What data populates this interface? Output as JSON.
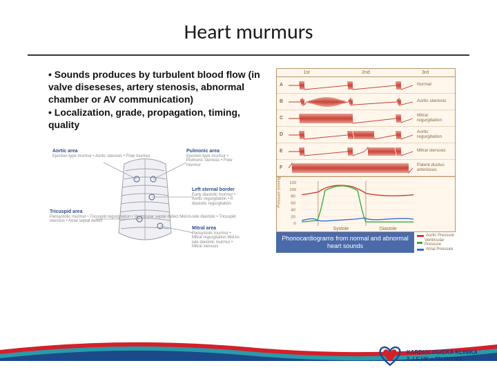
{
  "title": "Heart murmurs",
  "bullets": {
    "b1": "• Sounds produces by turbulent blood flow (in valve diseseses, artery stenosis, abnormal chamber or AV communication)",
    "b2": "• Localization, grade, propagation, timing, quality"
  },
  "auscultation": {
    "aortic": {
      "title": "Aortic area",
      "sub": "Ejection-type murmur\n• Aortic stenosis\n• Flow murmur"
    },
    "pulmonic": {
      "title": "Pulmonic area",
      "sub": "Ejection-type murmur\n• Pulmonic stenosis\n• Flow murmur"
    },
    "leftsternal": {
      "title": "Left sternal border",
      "sub": "Early diastolic murmur\n• Aortic regurgitation\n• P. diastolic regurgitation"
    },
    "tricuspid": {
      "title": "Tricuspid area",
      "sub": "Pansystolic murmur\n• Tricuspid regurgitation\n• Ventricular septal defect\n\nMid-to-late diastolic\n• Tricuspid stenosis\n• Atrial septal defect"
    },
    "mitral": {
      "title": "Mitral area",
      "sub": "Pansystolic murmur\n• Mitral regurgitation\n\nMid-to-late diastolic murmur\n• Mitral stenosis"
    },
    "colors": {
      "label": "#2a4a8a",
      "sublabel": "#888888",
      "rib": "#c8c8d0",
      "outline": "#9aa0a8",
      "point": "#6a7a9a"
    }
  },
  "phono": {
    "header": [
      "1st",
      "2nd",
      "3rd"
    ],
    "rows": [
      {
        "letter": "A",
        "label": "Normal",
        "pattern": "normal"
      },
      {
        "letter": "B",
        "label": "Aortic stenosis",
        "pattern": "systolic-crescendo"
      },
      {
        "letter": "C",
        "label": "Mitral regurgitation",
        "pattern": "pansystolic"
      },
      {
        "letter": "D",
        "label": "Aortic regurgitation",
        "pattern": "early-diastolic"
      },
      {
        "letter": "E",
        "label": "Mitral stenosis",
        "pattern": "mid-diastolic"
      },
      {
        "letter": "F",
        "label": "Patent ductus arteriosus",
        "pattern": "continuous"
      }
    ],
    "pressure": {
      "yticks": [
        "120",
        "100",
        "80",
        "60",
        "40",
        "20",
        "0"
      ],
      "ylabel": "Pressure (mmHg)",
      "phases": [
        "Systole",
        "Diastole"
      ],
      "legend": [
        {
          "label": "Aortic Pressure",
          "color": "#d83a2a"
        },
        {
          "label": "Ventricular Pressure",
          "color": "#3aaa3a"
        },
        {
          "label": "Atrial Pressure",
          "color": "#3a6ad8"
        }
      ],
      "ylim": [
        0,
        120
      ]
    },
    "caption": "Phonocardiograms from normal and abnormal heart sounds",
    "colors": {
      "bg": "#fff6ec",
      "border": "#b8956a",
      "wave": "#c8372a",
      "text": "#8a6a3a"
    }
  },
  "footer": {
    "line1": "KARDIOLOGICKÁ KLINIKA",
    "line2": "2. LF UK a FN MOTOL",
    "wave_colors": {
      "red": "#d4202a",
      "teal": "#2a9aaa",
      "navy": "#1a4a8a"
    },
    "heart_colors": {
      "outer": "#1a4a8a",
      "inner": "#d4202a"
    }
  }
}
